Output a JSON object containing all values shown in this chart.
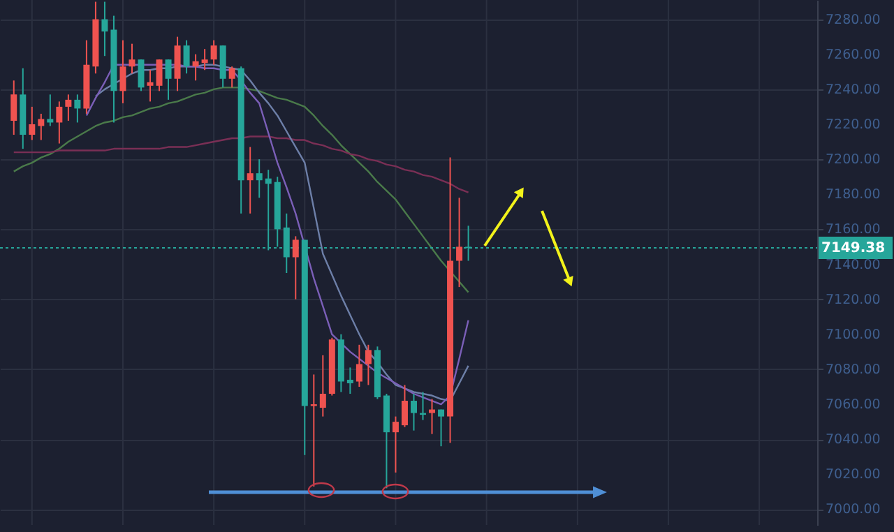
{
  "chart_data": {
    "type": "candlestick",
    "categories": [
      null,
      null,
      null,
      null,
      null,
      null,
      null,
      null,
      null,
      null,
      null,
      null,
      null,
      null,
      null,
      null,
      null,
      null,
      null,
      null,
      null,
      null,
      null,
      null,
      null,
      null,
      null,
      null,
      null,
      null,
      null,
      null,
      null,
      null,
      null,
      null,
      null,
      null,
      null,
      null,
      null,
      null,
      null,
      null,
      null,
      null,
      null,
      null,
      null,
      null,
      null
    ],
    "ohlc": [
      [
        7222,
        7245,
        7214,
        7237
      ],
      [
        7237,
        7252,
        7206,
        7214
      ],
      [
        7214,
        7230,
        7211,
        7220
      ],
      [
        7219,
        7226,
        7211,
        7223
      ],
      [
        7223,
        7237,
        7219,
        7221
      ],
      [
        7221,
        7233,
        7209,
        7230
      ],
      [
        7230,
        7237,
        7222,
        7234
      ],
      [
        7234,
        7237,
        7221,
        7229
      ],
      [
        7229,
        7268,
        7226,
        7254
      ],
      [
        7253,
        7290,
        7249,
        7280
      ],
      [
        7280,
        7290,
        7259,
        7273
      ],
      [
        7274,
        7282,
        7221,
        7239
      ],
      [
        7239,
        7268,
        7232,
        7253
      ],
      [
        7253,
        7266,
        7249,
        7257
      ],
      [
        7257,
        7257,
        7239,
        7241
      ],
      [
        7242,
        7251,
        7233,
        7244
      ],
      [
        7242,
        7257,
        7239,
        7257
      ],
      [
        7257,
        7257,
        7234,
        7246
      ],
      [
        7246,
        7270,
        7239,
        7265
      ],
      [
        7265,
        7268,
        7249,
        7253
      ],
      [
        7253,
        7260,
        7245,
        7256
      ],
      [
        7255,
        7263,
        7251,
        7257
      ],
      [
        7257,
        7268,
        7254,
        7265
      ],
      [
        7265,
        7265,
        7241,
        7246
      ],
      [
        7246,
        7253,
        7241,
        7252
      ],
      [
        7252,
        7253,
        7169,
        7188
      ],
      [
        7188,
        7207,
        7169,
        7192
      ],
      [
        7192,
        7200,
        7178,
        7188
      ],
      [
        7189,
        7194,
        7148,
        7186
      ],
      [
        7187,
        7190,
        7150,
        7160
      ],
      [
        7161,
        7169,
        7135,
        7144
      ],
      [
        7144,
        7156,
        7120,
        7154
      ],
      [
        7154,
        7154,
        7031,
        7059
      ],
      [
        7059,
        7077,
        7013,
        7060
      ],
      [
        7058,
        7088,
        7053,
        7066
      ],
      [
        7066,
        7098,
        7065,
        7097
      ],
      [
        7097,
        7100,
        7067,
        7073
      ],
      [
        7074,
        7081,
        7066,
        7072
      ],
      [
        7073,
        7094,
        7070,
        7083
      ],
      [
        7083,
        7094,
        7071,
        7091
      ],
      [
        7091,
        7093,
        7063,
        7064
      ],
      [
        7065,
        7066,
        7012,
        7044
      ],
      [
        7044,
        7053,
        7021,
        7050
      ],
      [
        7048,
        7071,
        7047,
        7062
      ],
      [
        7062,
        7066,
        7045,
        7055
      ],
      [
        7055,
        7067,
        7051,
        7054
      ],
      [
        7055,
        7063,
        7043,
        7057
      ],
      [
        7057,
        7057,
        7036,
        7053
      ],
      [
        7053,
        7201,
        7038,
        7142
      ],
      [
        7142,
        7178,
        7127,
        7150
      ],
      [
        7150,
        7162,
        7142,
        7149.38
      ]
    ],
    "colors": [
      "#ef5350",
      "#26a69a",
      "#ef5350",
      "#ef5350",
      "#26a69a",
      "#ef5350",
      "#ef5350",
      "#26a69a",
      "#ef5350",
      "#ef5350",
      "#26a69a",
      "#26a69a",
      "#ef5350",
      "#ef5350",
      "#26a69a",
      "#ef5350",
      "#ef5350",
      "#26a69a",
      "#ef5350",
      "#26a69a",
      "#ef5350",
      "#ef5350",
      "#ef5350",
      "#26a69a",
      "#ef5350",
      "#26a69a",
      "#ef5350",
      "#26a69a",
      "#26a69a",
      "#26a69a",
      "#26a69a",
      "#ef5350",
      "#26a69a",
      "#ef5350",
      "#ef5350",
      "#ef5350",
      "#26a69a",
      "#26a69a",
      "#ef5350",
      "#ef5350",
      "#26a69a",
      "#26a69a",
      "#ef5350",
      "#ef5350",
      "#26a69a",
      "#26a69a",
      "#ef5350",
      "#26a69a",
      "#ef5350",
      "#ef5350",
      "#26a69a"
    ],
    "series": [
      {
        "type": "line",
        "color": "#4a7a4a",
        "values": [
          7193,
          7196,
          7198,
          7201,
          7203,
          7206,
          7210,
          7213,
          7216,
          7219,
          7221,
          7222,
          7224,
          7225,
          7227,
          7229,
          7230,
          7232,
          7233,
          7235,
          7237,
          7238,
          7240,
          7241,
          7241,
          7241,
          7240,
          7239,
          7237,
          7235,
          7234,
          7232,
          7230,
          7225,
          7219,
          7214,
          7208,
          7203,
          7198,
          7193,
          7187,
          7182,
          7177,
          7170,
          7163,
          7156,
          7149,
          7142,
          7136,
          7130,
          7124
        ]
      },
      {
        "type": "line",
        "color": "#7a2f55",
        "values": [
          7204,
          7204,
          7204,
          7204,
          7204,
          7205,
          7205,
          7205,
          7205,
          7205,
          7205,
          7206,
          7206,
          7206,
          7206,
          7206,
          7206,
          7207,
          7207,
          7207,
          7208,
          7209,
          7210,
          7211,
          7212,
          7212,
          7213,
          7213,
          7213,
          7212,
          7212,
          7211,
          7211,
          7209,
          7208,
          7206,
          7205,
          7203,
          7202,
          7200,
          7199,
          7197,
          7196,
          7194,
          7193,
          7191,
          7190,
          7188,
          7186,
          7183,
          7181
        ]
      },
      {
        "type": "line",
        "color": "#6d7fa8",
        "values": [
          null,
          null,
          null,
          null,
          null,
          null,
          null,
          null,
          null,
          7236,
          7240,
          7243,
          7246,
          7249,
          7251,
          7251,
          7252,
          7252,
          7253,
          7253,
          7253,
          7254,
          7254,
          7253,
          7252,
          7251,
          7245,
          7238,
          7232,
          7225,
          7216,
          7207,
          7198,
          7172,
          7146,
          7134,
          7122,
          7111,
          7100,
          7090,
          7084,
          7077,
          7071,
          7069,
          7067,
          7066,
          7065,
          7063,
          7062,
          7072,
          7082
        ]
      },
      {
        "type": "line",
        "color": "#7b5fb8",
        "values": [
          null,
          null,
          null,
          null,
          null,
          null,
          null,
          null,
          7225,
          7235,
          7244,
          7254,
          7254,
          7254,
          7254,
          7254,
          7254,
          7254,
          7254,
          7253,
          7253,
          7252,
          7252,
          7251,
          7251,
          7245,
          7238,
          7232,
          7215,
          7198,
          7184,
          7169,
          null,
          7132,
          7116,
          7100,
          7095,
          7090,
          7086,
          7082,
          7078,
          7075,
          7072,
          7069,
          7066,
          7064,
          7062,
          7060,
          7065,
          7086,
          7108
        ]
      }
    ],
    "ylim": [
      6991,
      7291
    ],
    "yticks": [
      {
        "value": 7000,
        "label": "7000.00"
      },
      {
        "value": 7020,
        "label": "7020.00"
      },
      {
        "value": 7040,
        "label": "7040.00"
      },
      {
        "value": 7060,
        "label": "7060.00"
      },
      {
        "value": 7080,
        "label": "7080.00"
      },
      {
        "value": 7100,
        "label": "7100.00"
      },
      {
        "value": 7120,
        "label": "7120.00"
      },
      {
        "value": 7140,
        "label": "7140.00"
      },
      {
        "value": 7160,
        "label": "7160.00"
      },
      {
        "value": 7180,
        "label": "7180.00"
      },
      {
        "value": 7200,
        "label": "7200.00"
      },
      {
        "value": 7220,
        "label": "7220.00"
      },
      {
        "value": 7240,
        "label": "7240.00"
      },
      {
        "value": 7260,
        "label": "7260.00"
      },
      {
        "value": 7280,
        "label": "7280.00"
      }
    ],
    "ref_lines": [
      {
        "axis": "y",
        "value": 7149.38,
        "label": "7149.38",
        "color": "#26a69a",
        "line_style": "dotted"
      }
    ],
    "grid": true,
    "tick_labels": "y"
  }
}
